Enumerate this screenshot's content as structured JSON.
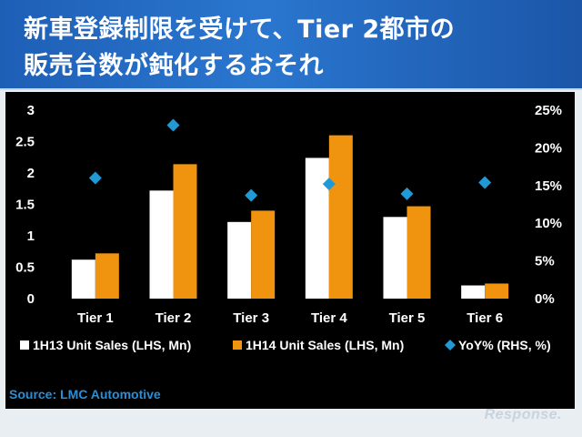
{
  "header": {
    "title_line1": "新車登録制限を受けて、Tier 2都市の",
    "title_line2": "販売台数が鈍化するおそれ"
  },
  "source": "Source: LMC Automotive",
  "watermark": "Response.",
  "colors": {
    "background": "#000000",
    "series_1h13": "#ffffff",
    "series_1h14": "#f0930f",
    "series_yoy": "#1f9ad6",
    "axis_text": "#ffffff"
  },
  "chart_data": {
    "type": "bar",
    "categories": [
      "Tier 1",
      "Tier 2",
      "Tier 3",
      "Tier 4",
      "Tier 5",
      "Tier 6"
    ],
    "series": [
      {
        "name": "1H13 Unit Sales (LHS, Mn)",
        "axis": "left",
        "values": [
          0.62,
          1.72,
          1.22,
          2.24,
          1.3,
          0.21
        ]
      },
      {
        "name": "1H14 Unit Sales (LHS, Mn)",
        "axis": "left",
        "values": [
          0.72,
          2.14,
          1.4,
          2.6,
          1.47,
          0.24
        ]
      },
      {
        "name": "YoY% (RHS, %)",
        "axis": "right",
        "type": "scatter",
        "values": [
          16,
          23,
          13.7,
          15.2,
          13.9,
          15.4
        ]
      }
    ],
    "y_left": {
      "ylim": [
        0,
        3
      ],
      "ticks": [
        "0",
        "0.5",
        "1",
        "1.5",
        "2",
        "2.5",
        "3"
      ]
    },
    "y_right": {
      "ylim": [
        0,
        25
      ],
      "ticks": [
        "0%",
        "5%",
        "10%",
        "15%",
        "20%",
        "25%"
      ]
    },
    "grid": false,
    "legend_position": "bottom"
  }
}
